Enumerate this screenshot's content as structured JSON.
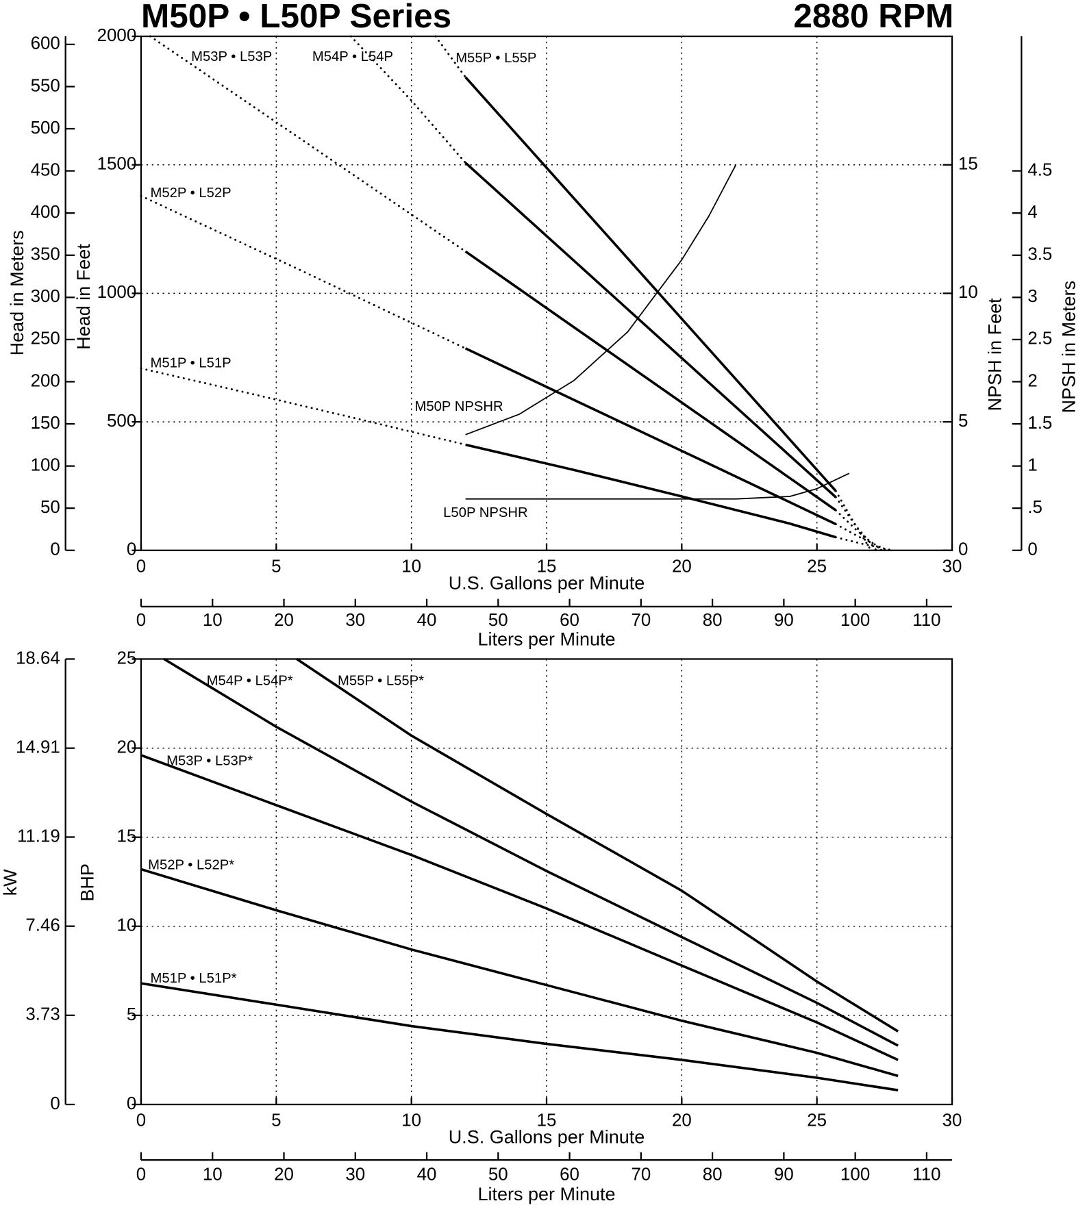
{
  "chart_data": [
    {
      "type": "line",
      "title": "M50P • L50P Series",
      "subtitle": "2880 RPM",
      "x_label": "U.S. Gallons per Minute",
      "xlim": [
        0,
        30
      ],
      "xticks": [
        0,
        5,
        10,
        15,
        20,
        25,
        30
      ],
      "x2_label": "Liters per Minute",
      "x2lim": [
        0,
        113.56
      ],
      "x2ticks": [
        0,
        10,
        20,
        30,
        40,
        50,
        60,
        70,
        80,
        90,
        100,
        110
      ],
      "y_label": "Head in Feet",
      "ylim": [
        0,
        2000
      ],
      "yticks": [
        0,
        500,
        1000,
        1500,
        2000
      ],
      "y3_label": "Head in Meters",
      "y3lim": [
        0,
        609.6
      ],
      "y3ticks": [
        0,
        50,
        100,
        150,
        200,
        250,
        300,
        350,
        400,
        450,
        500,
        550,
        600
      ],
      "y2_label": "NPSH in Feet",
      "y2lim": [
        0,
        20
      ],
      "y2ticks": [
        0,
        5,
        10,
        15
      ],
      "y4_label": "NPSH in Meters",
      "y4lim": [
        0,
        6.096
      ],
      "y4ticks": [
        0,
        {
          "value": 0.5,
          "label": ".5"
        },
        1,
        1.5,
        2,
        2.5,
        3,
        3.5,
        4,
        4.5
      ],
      "grid": true,
      "series": [
        {
          "name": "M51P • L51P",
          "color": "#000000",
          "style": "solid",
          "x": [
            12,
            16,
            20,
            24,
            25.7
          ],
          "values": [
            411,
            313,
            210,
            104,
            51
          ]
        },
        {
          "name": "M52P • L52P",
          "color": "#000000",
          "style": "solid",
          "x": [
            12,
            16,
            20,
            24,
            25.7
          ],
          "values": [
            786,
            586,
            387,
            187,
            102
          ]
        },
        {
          "name": "M53P • L53P",
          "color": "#000000",
          "style": "solid",
          "x": [
            12,
            16,
            20,
            24,
            25.7
          ],
          "values": [
            1163,
            869,
            575,
            281,
            156
          ]
        },
        {
          "name": "M54P • L54P",
          "color": "#000000",
          "style": "solid",
          "x": [
            12,
            16,
            20,
            24,
            25.7
          ],
          "values": [
            1508,
            1128,
            748,
            368,
            207
          ]
        },
        {
          "name": "M55P • L55P",
          "color": "#000000",
          "style": "solid",
          "x": [
            12,
            16,
            20,
            24,
            25.7
          ],
          "values": [
            1841,
            1371,
            901,
            431,
            231
          ]
        },
        {
          "color": "#000000",
          "style": "dotted",
          "x": [
            0,
            4,
            8,
            12,
            19,
            25.7,
            26.7,
            27.8
          ],
          "values": [
            708,
            611,
            512,
            411,
            null,
            51,
            25,
            0
          ]
        },
        {
          "color": "#000000",
          "style": "dotted",
          "x": [
            0,
            6,
            12,
            19,
            25.7,
            26.6,
            27.6
          ],
          "values": [
            1379,
            1085,
            786,
            null,
            102,
            50,
            0
          ]
        },
        {
          "color": "#000000",
          "style": "dotted",
          "x": [
            0.34,
            6,
            12,
            19,
            25.7,
            26.5,
            27.4
          ],
          "values": [
            2000,
            1594,
            1163,
            null,
            156,
            75,
            0
          ]
        },
        {
          "color": "#000000",
          "style": "dotted",
          "x": [
            7.76,
            10,
            12,
            19,
            25.7,
            26.4,
            27.2
          ],
          "values": [
            2000,
            1750,
            1508,
            null,
            207,
            100,
            0
          ]
        },
        {
          "color": "#000000",
          "style": "dotted",
          "x": [
            10.89,
            12,
            19,
            25.7,
            26.3,
            27
          ],
          "values": [
            2000,
            1841,
            null,
            231,
            120,
            0
          ]
        },
        {
          "name": "M50P NPSHR",
          "color": "#000000",
          "style": "thin",
          "axis": "y2",
          "x": [
            12,
            14,
            16,
            18,
            20,
            21,
            22
          ],
          "values": [
            4.5,
            5.3,
            6.6,
            8.5,
            11.3,
            13,
            15
          ]
        },
        {
          "name": "L50P NPSHR",
          "color": "#000000",
          "style": "thin",
          "axis": "y2",
          "x": [
            12,
            16,
            20,
            22,
            24,
            25,
            26.2
          ],
          "values": [
            2,
            2,
            2,
            2,
            2.1,
            2.4,
            3
          ]
        }
      ]
    },
    {
      "type": "line",
      "x_label": "U.S. Gallons per Minute",
      "xlim": [
        0,
        30
      ],
      "xticks": [
        0,
        5,
        10,
        15,
        20,
        25,
        30
      ],
      "x2_label": "Liters per Minute",
      "x2lim": [
        0,
        113.56
      ],
      "x2ticks": [
        0,
        10,
        20,
        30,
        40,
        50,
        60,
        70,
        80,
        90,
        100,
        110
      ],
      "y_label": "BHP",
      "ylim": [
        0,
        25
      ],
      "yticks": [
        0,
        5,
        10,
        15,
        20,
        25
      ],
      "y3_label": "kW",
      "y3lim": [
        0,
        18.64
      ],
      "y3ticks": [
        0,
        3.73,
        7.46,
        11.19,
        14.91,
        18.64
      ],
      "grid": true,
      "series": [
        {
          "name": "M51P • L51P*",
          "color": "#000000",
          "style": "solid",
          "x": [
            0,
            5,
            10,
            15,
            20,
            25,
            28
          ],
          "values": [
            6.8,
            5.6,
            4.4,
            3.4,
            2.5,
            1.5,
            0.8
          ]
        },
        {
          "name": "M52P • L52P*",
          "color": "#000000",
          "style": "solid",
          "x": [
            0,
            5,
            10,
            15,
            20,
            25,
            28
          ],
          "values": [
            13.2,
            10.9,
            8.7,
            6.7,
            4.7,
            2.9,
            1.6
          ]
        },
        {
          "name": "M53P • L53P*",
          "color": "#000000",
          "style": "solid",
          "x": [
            0,
            5,
            10,
            15,
            20,
            25,
            28
          ],
          "values": [
            19.6,
            16.8,
            14,
            11,
            7.8,
            4.6,
            2.5
          ]
        },
        {
          "name": "M54P • L54P*",
          "color": "#000000",
          "style": "solid",
          "x": [
            0.85,
            5,
            10,
            15,
            20,
            25,
            28
          ],
          "values": [
            25,
            21.2,
            17,
            13.1,
            9.4,
            5.7,
            3.3
          ]
        },
        {
          "name": "M55P • L55P*",
          "color": "#000000",
          "style": "solid",
          "x": [
            5.76,
            10,
            15,
            20,
            25,
            28
          ],
          "values": [
            25,
            20.7,
            16.3,
            12,
            6.9,
            4.1
          ]
        }
      ]
    }
  ]
}
